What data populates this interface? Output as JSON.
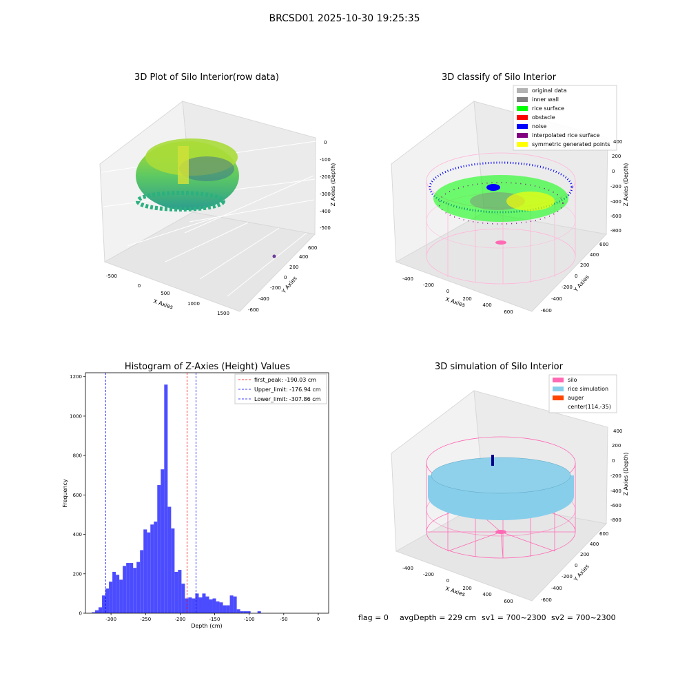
{
  "suptitle": "BRCSD01 2025-10-30 19:25:35",
  "footer": {
    "flag": "flag = 0",
    "avg_depth": "avgDepth = 229 cm",
    "sv1": "sv1 = 700~2300",
    "sv2": "sv2 = 700~2300"
  },
  "chart_data": [
    {
      "type": "scatter",
      "title": "3D Plot of Silo Interior(row data)",
      "xlabel": "X Axies",
      "ylabel": "Y Axies",
      "zlabel": "Z Axies (Depth)",
      "x_ticks": [
        "-500",
        "0",
        "500",
        "1000",
        "1500"
      ],
      "y_ticks": [
        "-600",
        "-400",
        "-200",
        "0",
        "200",
        "400",
        "600"
      ],
      "z_ticks": [
        "0",
        "-100",
        "-200",
        "-300",
        "-400",
        "-500"
      ],
      "xlim": [
        -600,
        1600
      ],
      "ylim": [
        -700,
        700
      ],
      "zlim": [
        -550,
        30
      ],
      "colormap": "viridis",
      "outlier_point": {
        "x": 1500,
        "y": 300,
        "z": -500
      }
    },
    {
      "type": "scatter",
      "title": "3D classify of Silo Interior",
      "xlabel": "X Axies",
      "ylabel": "Y Axies",
      "zlabel": "Z Axies (Depth)",
      "x_ticks": [
        "-400",
        "-200",
        "0",
        "200",
        "400",
        "600"
      ],
      "y_ticks": [
        "-600",
        "-400",
        "-200",
        "0",
        "200",
        "400",
        "600"
      ],
      "z_ticks": [
        "400",
        "200",
        "0",
        "-200",
        "-400",
        "-600",
        "-800"
      ],
      "legend": [
        {
          "name": "original data",
          "color": "#b3b3b3"
        },
        {
          "name": "inner wall",
          "color": "#808080"
        },
        {
          "name": "rice surface",
          "color": "#00ff00"
        },
        {
          "name": "obstacle",
          "color": "#ff0000"
        },
        {
          "name": "noise",
          "color": "#0000ff"
        },
        {
          "name": "interpolated rice surface",
          "color": "#800080"
        },
        {
          "name": "symmetric generated points",
          "color": "#ffff00"
        }
      ],
      "legend_position": "top-right",
      "silo_color": "#ffb6d9"
    },
    {
      "type": "bar",
      "title": "Histogram of Z-Axies (Height) Values",
      "xlabel": "Depth (cm)",
      "ylabel": "Frequency",
      "xlim": [
        -337,
        15
      ],
      "ylim": [
        0,
        1220
      ],
      "x_ticks": [
        -300,
        -250,
        -200,
        -150,
        -100,
        -50,
        0
      ],
      "y_ticks": [
        0,
        200,
        400,
        600,
        800,
        1000,
        1200
      ],
      "bin_width": 5,
      "bin_start": -328,
      "bar_color": "#4c4cff",
      "values": [
        5,
        15,
        30,
        90,
        125,
        160,
        210,
        195,
        170,
        240,
        255,
        255,
        230,
        260,
        320,
        425,
        410,
        450,
        465,
        650,
        730,
        1160,
        540,
        430,
        210,
        220,
        150,
        75,
        80,
        75,
        100,
        80,
        100,
        85,
        70,
        75,
        60,
        55,
        40,
        40,
        90,
        85,
        20,
        10,
        10,
        10,
        0,
        0,
        10
      ],
      "vlines": [
        {
          "label": "first_peak: -190.03 cm",
          "x": -190.03,
          "color": "#ff0000"
        },
        {
          "label": "Upper_limit: -176.94 cm",
          "x": -176.94,
          "color": "#0000ff"
        },
        {
          "label": "Lower_limit: -307.86 cm",
          "x": -307.86,
          "color": "#0000ff"
        }
      ],
      "legend_position": "top-right"
    },
    {
      "type": "area",
      "title": "3D simulation of Silo Interior",
      "xlabel": "X Axies",
      "ylabel": "Y Axies",
      "zlabel": "Z Axies (Depth)",
      "x_ticks": [
        "-400",
        "-200",
        "0",
        "200",
        "400",
        "600"
      ],
      "y_ticks": [
        "-600",
        "-400",
        "-200",
        "0",
        "200",
        "400",
        "600"
      ],
      "z_ticks": [
        "400",
        "200",
        "0",
        "-200",
        "-400",
        "-600",
        "-800"
      ],
      "legend": [
        {
          "name": "silo",
          "color": "#ff69b4"
        },
        {
          "name": "rice simulation",
          "color": "#87ceeb"
        },
        {
          "name": "auger",
          "color": "#ff4500"
        },
        {
          "name": "center(114,-35)",
          "color": ""
        }
      ],
      "legend_position": "top-right"
    }
  ]
}
